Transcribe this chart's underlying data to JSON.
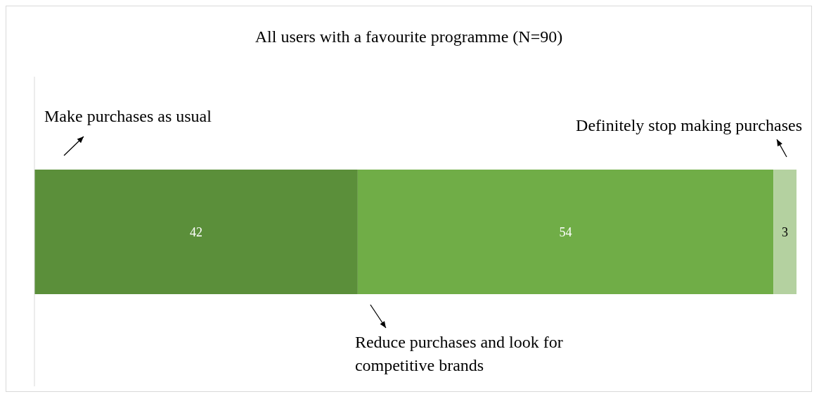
{
  "chart_data": {
    "type": "bar",
    "orientation": "horizontal",
    "stacked": true,
    "data_labels": true,
    "title": "All users with a favourite programme (N=90)",
    "categories": [
      null
    ],
    "series": [
      {
        "name": "Make purchases as usual",
        "color": "#5b8f3a",
        "values": [
          42
        ]
      },
      {
        "name": "Reduce purchases and look for competitive brands",
        "color": "#70ad47",
        "values": [
          54
        ]
      },
      {
        "name": "Definitely stop making purchases",
        "color": "#b4d1a0",
        "values": [
          3
        ]
      }
    ]
  }
}
